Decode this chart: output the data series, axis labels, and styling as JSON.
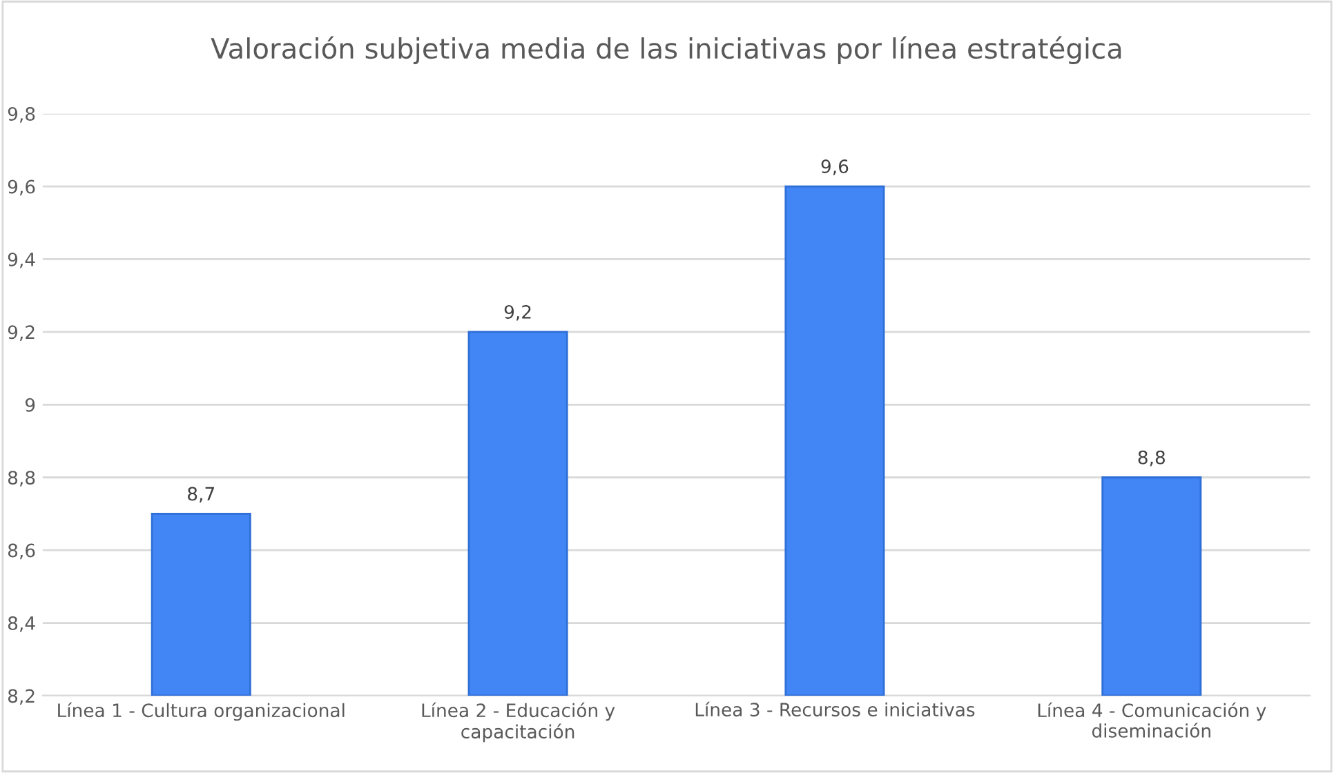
{
  "chart_data": {
    "type": "bar",
    "title": "Valoración subjetiva media de las iniciativas por línea estratégica",
    "categories": [
      "Línea 1 - Cultura organizacional",
      "Línea 2 - Educación y\ncapacitación",
      "Línea 3 - Recursos e iniciativas",
      "Línea 4 - Comunicación y\ndiseminación"
    ],
    "values": [
      8.7,
      9.2,
      9.6,
      8.8
    ],
    "color": "#4285f4",
    "value_labels": [
      "8,7",
      "9,2",
      "9,6",
      "8,8"
    ],
    "ylim": [
      8.2,
      9.8
    ],
    "yticks": [
      {
        "value": 8.2,
        "label": "8,2"
      },
      {
        "value": 8.4,
        "label": "8,4"
      },
      {
        "value": 8.6,
        "label": "8,6"
      },
      {
        "value": 8.8,
        "label": "8,8"
      },
      9,
      {
        "value": 9.2,
        "label": "9,2"
      },
      {
        "value": 9.4,
        "label": "9,4"
      },
      {
        "value": 9.6,
        "label": "9,6"
      },
      {
        "value": 9.8,
        "label": "9,8"
      }
    ],
    "grid": "y",
    "legend": false
  }
}
